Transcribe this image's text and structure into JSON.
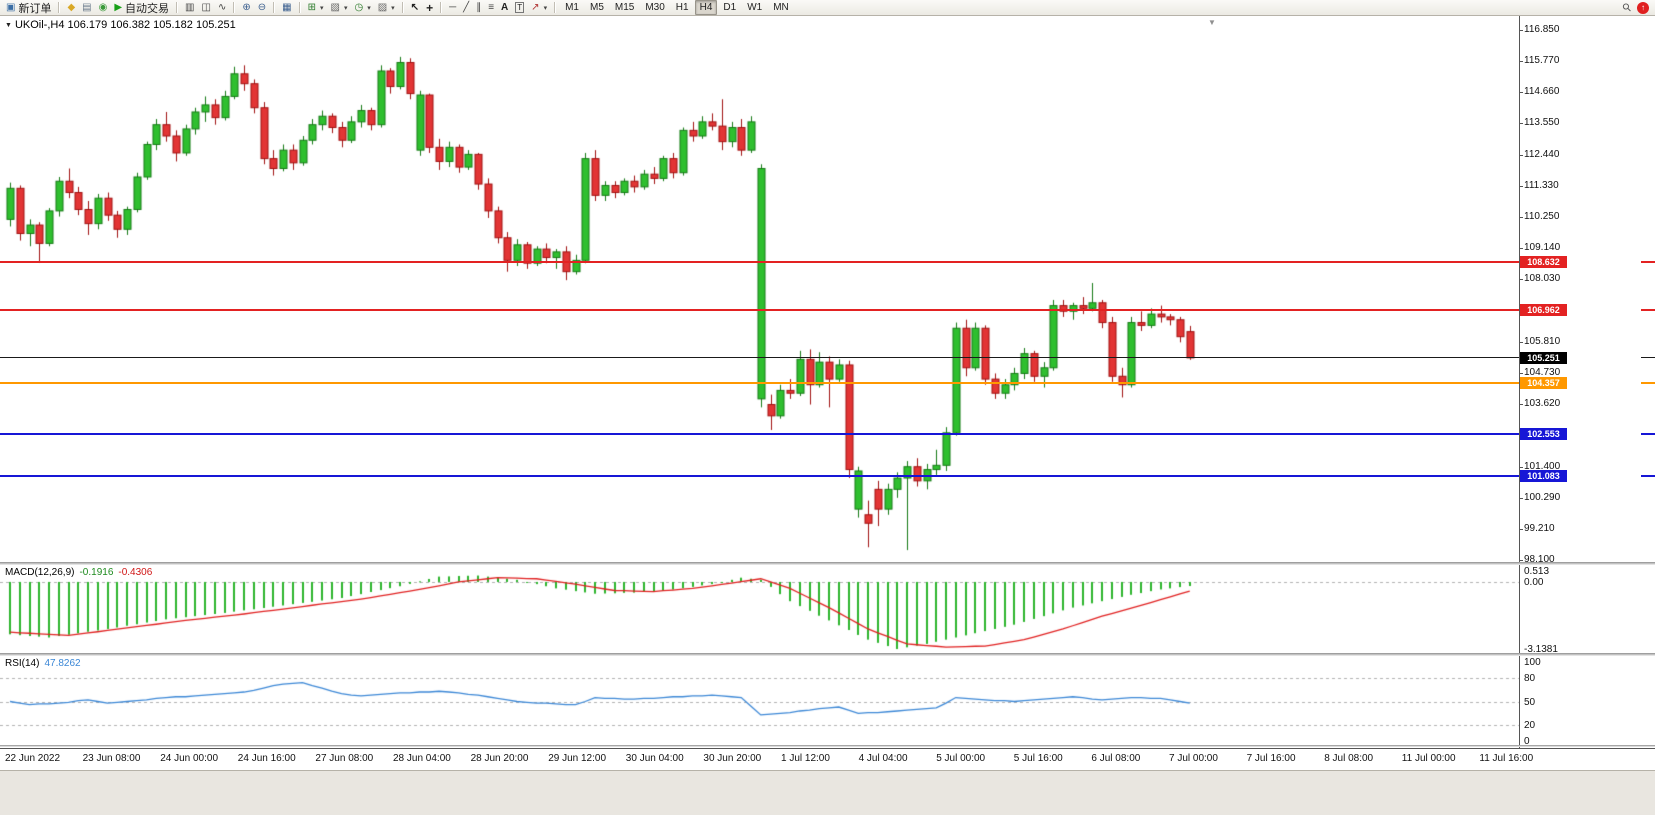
{
  "toolbar": {
    "new_order_label": "新订单",
    "auto_trading_label": "自动交易",
    "text_tool_label": "A",
    "label_tool_label": "T",
    "timeframes": [
      "M1",
      "M5",
      "M15",
      "M30",
      "H1",
      "H4",
      "D1",
      "W1",
      "MN"
    ],
    "active_timeframe": "H4"
  },
  "icons": {
    "new_order": "▣",
    "profile": "◆",
    "print": "▤",
    "web": "◉",
    "play": "▶",
    "bars": "▥",
    "candles": "◫",
    "line_chart": "∿",
    "zoom_in": "⊕",
    "zoom_out": "⊖",
    "tile": "▦",
    "new_chart": "⊞",
    "profiles": "▧",
    "clock": "◷",
    "template": "▨",
    "cursor": "↖",
    "crosshair": "+",
    "hline": "─",
    "trend": "╱",
    "channel": "∥",
    "fibo": "≡",
    "arrows": "↗",
    "caret": "▾",
    "search": "⚲",
    "upload": "↑",
    "title_arrow": "▼",
    "shift_marker": "▼"
  },
  "chart": {
    "title": "UKOil-,H4 106.179 106.382 105.182 105.251",
    "price_axis_labels": [
      "116.850",
      "115.770",
      "114.660",
      "113.550",
      "112.440",
      "111.330",
      "110.250",
      "109.140",
      "108.030",
      "106.920",
      "105.810",
      "104.730",
      "103.620",
      "102.510",
      "101.400",
      "100.290",
      "99.210",
      "98.100"
    ],
    "time_labels": [
      "22 Jun 2022",
      "23 Jun 08:00",
      "24 Jun 00:00",
      "24 Jun 16:00",
      "27 Jun 08:00",
      "28 Jun 04:00",
      "28 Jun 20:00",
      "29 Jun 12:00",
      "30 Jun 04:00",
      "30 Jun 20:00",
      "1 Jul 12:00",
      "4 Jul 04:00",
      "5 Jul 00:00",
      "5 Jul 16:00",
      "6 Jul 08:00",
      "7 Jul 00:00",
      "7 Jul 16:00",
      "8 Jul 08:00",
      "11 Jul 00:00",
      "11 Jul 16:00"
    ]
  },
  "macd": {
    "title": "MACD(12,26,9)",
    "main_value": "-0.1916",
    "signal_value": "-0.4306",
    "axis": [
      "0.513",
      "0.00",
      "-3.1381"
    ]
  },
  "rsi": {
    "title": "RSI(14)",
    "value": "47.8262",
    "axis": [
      "100",
      "80",
      "50",
      "20",
      "0"
    ]
  },
  "chart_data": {
    "type": "candlestick",
    "symbol": "UKOil-",
    "timeframe": "H4",
    "price_range": [
      98.1,
      116.85
    ],
    "levels": [
      {
        "value": 108.632,
        "label": "108.632",
        "color": "#e32222",
        "width": 2
      },
      {
        "value": 106.962,
        "label": "106.962",
        "color": "#e32222",
        "width": 2
      },
      {
        "value": 105.251,
        "label": "105.251",
        "color": "#1a1a1a",
        "width": 1,
        "badge": "#000000"
      },
      {
        "value": 104.357,
        "label": "104.357",
        "color": "#ff9800",
        "width": 2
      },
      {
        "value": 102.553,
        "label": "102.553",
        "color": "#1616d6",
        "width": 2
      },
      {
        "value": 101.083,
        "label": "101.083",
        "color": "#1616d6",
        "width": 2
      }
    ],
    "ohlc": [
      [
        110.15,
        111.45,
        109.9,
        111.25
      ],
      [
        111.25,
        111.35,
        109.4,
        109.65
      ],
      [
        109.65,
        110.15,
        109.2,
        109.95
      ],
      [
        109.95,
        110.05,
        108.63,
        109.3
      ],
      [
        109.3,
        110.55,
        109.2,
        110.45
      ],
      [
        110.45,
        111.65,
        110.25,
        111.5
      ],
      [
        111.5,
        111.95,
        110.9,
        111.1
      ],
      [
        111.1,
        111.3,
        110.3,
        110.5
      ],
      [
        110.5,
        110.8,
        109.6,
        110.0
      ],
      [
        110.0,
        111.05,
        109.8,
        110.9
      ],
      [
        110.9,
        111.1,
        110.1,
        110.3
      ],
      [
        110.3,
        110.45,
        109.5,
        109.8
      ],
      [
        109.8,
        110.6,
        109.6,
        110.5
      ],
      [
        110.5,
        111.8,
        110.4,
        111.65
      ],
      [
        111.65,
        112.9,
        111.55,
        112.8
      ],
      [
        112.8,
        113.7,
        112.6,
        113.5
      ],
      [
        113.5,
        113.95,
        112.9,
        113.1
      ],
      [
        113.1,
        113.3,
        112.2,
        112.5
      ],
      [
        112.5,
        113.5,
        112.4,
        113.35
      ],
      [
        113.35,
        114.1,
        113.15,
        113.95
      ],
      [
        113.95,
        114.5,
        113.6,
        114.2
      ],
      [
        114.2,
        114.4,
        113.5,
        113.75
      ],
      [
        113.75,
        114.7,
        113.65,
        114.5
      ],
      [
        114.5,
        115.55,
        114.4,
        115.3
      ],
      [
        115.3,
        115.6,
        114.7,
        114.95
      ],
      [
        114.95,
        115.1,
        113.9,
        114.1
      ],
      [
        114.1,
        114.3,
        112.1,
        112.3
      ],
      [
        112.3,
        112.6,
        111.7,
        111.95
      ],
      [
        111.95,
        112.8,
        111.85,
        112.6
      ],
      [
        112.6,
        112.8,
        111.9,
        112.15
      ],
      [
        112.15,
        113.1,
        112.05,
        112.95
      ],
      [
        112.95,
        113.7,
        112.8,
        113.5
      ],
      [
        113.5,
        114.0,
        113.3,
        113.8
      ],
      [
        113.8,
        113.9,
        113.2,
        113.4
      ],
      [
        113.4,
        113.6,
        112.7,
        112.95
      ],
      [
        112.95,
        113.8,
        112.85,
        113.6
      ],
      [
        113.6,
        114.2,
        113.4,
        114.0
      ],
      [
        114.0,
        114.1,
        113.3,
        113.5
      ],
      [
        113.5,
        115.6,
        113.4,
        115.4
      ],
      [
        115.4,
        115.5,
        114.6,
        114.85
      ],
      [
        114.85,
        115.9,
        114.75,
        115.7
      ],
      [
        115.7,
        115.85,
        114.4,
        114.6
      ],
      [
        112.6,
        114.7,
        112.4,
        114.55
      ],
      [
        114.55,
        114.6,
        112.5,
        112.7
      ],
      [
        112.7,
        113.0,
        111.9,
        112.2
      ],
      [
        112.2,
        112.9,
        112.0,
        112.7
      ],
      [
        112.7,
        112.8,
        111.8,
        112.0
      ],
      [
        112.0,
        112.6,
        111.9,
        112.45
      ],
      [
        112.45,
        112.5,
        111.2,
        111.4
      ],
      [
        111.4,
        111.6,
        110.2,
        110.45
      ],
      [
        110.45,
        110.6,
        109.3,
        109.5
      ],
      [
        109.5,
        109.7,
        108.3,
        108.7
      ],
      [
        108.7,
        109.45,
        108.5,
        109.25
      ],
      [
        109.25,
        109.35,
        108.4,
        108.6
      ],
      [
        108.6,
        109.2,
        108.5,
        109.1
      ],
      [
        109.1,
        109.3,
        108.6,
        108.8
      ],
      [
        108.8,
        109.1,
        108.4,
        109.0
      ],
      [
        109.0,
        109.2,
        108.0,
        108.3
      ],
      [
        108.3,
        108.9,
        108.2,
        108.7
      ],
      [
        108.7,
        112.5,
        108.6,
        112.3
      ],
      [
        112.3,
        112.6,
        110.8,
        111.0
      ],
      [
        111.0,
        111.5,
        110.8,
        111.35
      ],
      [
        111.35,
        111.5,
        110.9,
        111.1
      ],
      [
        111.1,
        111.6,
        111.0,
        111.5
      ],
      [
        111.5,
        111.7,
        111.1,
        111.3
      ],
      [
        111.3,
        111.9,
        111.2,
        111.75
      ],
      [
        111.75,
        112.0,
        111.4,
        111.6
      ],
      [
        111.6,
        112.4,
        111.5,
        112.3
      ],
      [
        112.3,
        112.5,
        111.6,
        111.8
      ],
      [
        111.8,
        113.4,
        111.7,
        113.3
      ],
      [
        113.3,
        113.6,
        112.9,
        113.1
      ],
      [
        113.1,
        113.8,
        113.0,
        113.6
      ],
      [
        113.6,
        113.9,
        113.3,
        113.45
      ],
      [
        113.45,
        114.4,
        112.6,
        112.9
      ],
      [
        112.9,
        113.6,
        112.7,
        113.4
      ],
      [
        113.4,
        113.7,
        112.4,
        112.6
      ],
      [
        112.6,
        113.8,
        112.5,
        113.6
      ],
      [
        103.8,
        112.1,
        103.5,
        111.95
      ],
      [
        103.6,
        103.95,
        102.7,
        103.2
      ],
      [
        103.2,
        104.3,
        103.1,
        104.1
      ],
      [
        104.1,
        104.5,
        103.8,
        104.0
      ],
      [
        104.0,
        105.5,
        103.9,
        105.2
      ],
      [
        105.2,
        105.55,
        103.6,
        104.3
      ],
      [
        104.3,
        105.45,
        104.2,
        105.1
      ],
      [
        105.1,
        105.3,
        103.5,
        104.5
      ],
      [
        104.5,
        105.2,
        104.4,
        105.0
      ],
      [
        105.0,
        105.15,
        101.0,
        101.3
      ],
      [
        99.9,
        101.4,
        99.6,
        101.25
      ],
      [
        99.7,
        100.2,
        98.55,
        99.4
      ],
      [
        100.6,
        100.9,
        99.3,
        99.9
      ],
      [
        99.9,
        100.8,
        99.7,
        100.6
      ],
      [
        100.6,
        101.2,
        100.3,
        101.0
      ],
      [
        101.0,
        101.6,
        98.45,
        101.4
      ],
      [
        101.4,
        101.7,
        100.7,
        100.9
      ],
      [
        100.9,
        101.5,
        100.6,
        101.3
      ],
      [
        101.3,
        102.0,
        101.1,
        101.45
      ],
      [
        101.45,
        102.8,
        101.25,
        102.6
      ],
      [
        102.6,
        106.5,
        102.5,
        106.3
      ],
      [
        106.3,
        106.6,
        104.6,
        104.9
      ],
      [
        104.9,
        106.5,
        104.8,
        106.3
      ],
      [
        106.3,
        106.4,
        104.3,
        104.5
      ],
      [
        104.5,
        104.7,
        103.8,
        104.0
      ],
      [
        104.0,
        104.5,
        103.8,
        104.3
      ],
      [
        104.3,
        104.9,
        104.1,
        104.7
      ],
      [
        104.7,
        105.6,
        104.5,
        105.4
      ],
      [
        105.4,
        105.5,
        104.4,
        104.6
      ],
      [
        104.6,
        105.1,
        104.2,
        104.9
      ],
      [
        104.9,
        107.3,
        104.8,
        107.1
      ],
      [
        107.1,
        107.3,
        106.7,
        106.9
      ],
      [
        106.9,
        107.2,
        106.6,
        107.1
      ],
      [
        107.1,
        107.4,
        106.8,
        107.0
      ],
      [
        107.0,
        107.9,
        106.9,
        107.2
      ],
      [
        107.2,
        107.3,
        106.3,
        106.5
      ],
      [
        106.5,
        106.7,
        104.4,
        104.6
      ],
      [
        104.6,
        104.9,
        103.85,
        104.3
      ],
      [
        104.3,
        106.7,
        104.2,
        106.5
      ],
      [
        106.5,
        106.9,
        106.2,
        106.4
      ],
      [
        106.4,
        107.0,
        106.3,
        106.8
      ],
      [
        106.8,
        107.1,
        106.5,
        106.7
      ],
      [
        106.7,
        106.8,
        106.4,
        106.6
      ],
      [
        106.6,
        106.7,
        105.8,
        106.0
      ],
      [
        106.179,
        106.382,
        105.182,
        105.251
      ]
    ],
    "macd": {
      "range": [
        -3.1381,
        0.513
      ],
      "histogram": [
        -2.45,
        -2.49,
        -2.53,
        -2.56,
        -2.6,
        -2.53,
        -2.47,
        -2.4,
        -2.33,
        -2.27,
        -2.2,
        -2.13,
        -2.05,
        -1.98,
        -1.9,
        -1.83,
        -1.75,
        -1.7,
        -1.65,
        -1.6,
        -1.55,
        -1.5,
        -1.45,
        -1.39,
        -1.33,
        -1.28,
        -1.22,
        -1.16,
        -1.1,
        -1.04,
        -0.98,
        -0.93,
        -0.87,
        -0.81,
        -0.75,
        -0.66,
        -0.57,
        -0.47,
        -0.38,
        -0.29,
        -0.2,
        -0.09,
        0.03,
        0.14,
        0.25,
        0.26,
        0.28,
        0.29,
        0.3,
        0.25,
        0.2,
        0.15,
        0.1,
        0.0,
        -0.1,
        -0.2,
        -0.3,
        -0.36,
        -0.43,
        -0.49,
        -0.55,
        -0.54,
        -0.53,
        -0.51,
        -0.5,
        -0.46,
        -0.43,
        -0.39,
        -0.35,
        -0.29,
        -0.23,
        -0.16,
        -0.1,
        0.0,
        0.1,
        0.2,
        0.15,
        0.1,
        -0.23,
        -0.57,
        -0.9,
        -1.13,
        -1.35,
        -1.58,
        -1.8,
        -2.03,
        -2.25,
        -2.48,
        -2.7,
        -2.85,
        -3.0,
        -3.14,
        -3.06,
        -2.98,
        -2.9,
        -2.8,
        -2.7,
        -2.6,
        -2.5,
        -2.4,
        -2.3,
        -2.2,
        -2.1,
        -2.0,
        -1.87,
        -1.73,
        -1.6,
        -1.47,
        -1.33,
        -1.2,
        -1.1,
        -1.0,
        -0.9,
        -0.8,
        -0.7,
        -0.6,
        -0.52,
        -0.43,
        -0.35,
        -0.3,
        -0.24,
        -0.19
      ],
      "signal": [
        -2.35,
        -2.38,
        -2.4,
        -2.43,
        -2.45,
        -2.48,
        -2.5,
        -2.44,
        -2.38,
        -2.33,
        -2.27,
        -2.21,
        -2.15,
        -2.09,
        -2.03,
        -1.98,
        -1.92,
        -1.86,
        -1.8,
        -1.75,
        -1.7,
        -1.65,
        -1.6,
        -1.55,
        -1.5,
        -1.44,
        -1.38,
        -1.33,
        -1.27,
        -1.21,
        -1.15,
        -1.09,
        -1.03,
        -0.98,
        -0.92,
        -0.86,
        -0.8,
        -0.73,
        -0.65,
        -0.58,
        -0.5,
        -0.43,
        -0.35,
        -0.26,
        -0.18,
        -0.09,
        0.0,
        0.05,
        0.1,
        0.15,
        0.2,
        0.19,
        0.18,
        0.16,
        0.15,
        0.09,
        0.03,
        -0.04,
        -0.1,
        -0.18,
        -0.25,
        -0.33,
        -0.4,
        -0.41,
        -0.43,
        -0.44,
        -0.45,
        -0.41,
        -0.38,
        -0.34,
        -0.3,
        -0.24,
        -0.18,
        -0.11,
        -0.05,
        0.02,
        0.08,
        0.15,
        0.0,
        -0.15,
        -0.3,
        -0.53,
        -0.75,
        -0.98,
        -1.2,
        -1.45,
        -1.7,
        -1.95,
        -2.2,
        -2.38,
        -2.55,
        -2.73,
        -2.9,
        -2.94,
        -2.98,
        -3.01,
        -3.05,
        -3.04,
        -3.03,
        -3.01,
        -3.0,
        -2.93,
        -2.85,
        -2.78,
        -2.7,
        -2.58,
        -2.45,
        -2.33,
        -2.2,
        -2.05,
        -1.9,
        -1.75,
        -1.6,
        -1.48,
        -1.35,
        -1.23,
        -1.1,
        -0.97,
        -0.83,
        -0.7,
        -0.56,
        -0.43
      ]
    },
    "rsi": {
      "range": [
        0,
        100
      ],
      "levels": [
        80,
        50,
        20
      ],
      "values": [
        50,
        48,
        46,
        47,
        47,
        48,
        49,
        51,
        52,
        50,
        48,
        49,
        50,
        51,
        52,
        54,
        55,
        56,
        56,
        57,
        58,
        59,
        60,
        61,
        62,
        64,
        67,
        70,
        72,
        73,
        74,
        70,
        67,
        63,
        60,
        58,
        57,
        58,
        59,
        60,
        61,
        61,
        62,
        62,
        63,
        62,
        61,
        59,
        58,
        56,
        54,
        52,
        50,
        49,
        48,
        48,
        47,
        46,
        46,
        50,
        55,
        54,
        54,
        53,
        53,
        54,
        54,
        55,
        56,
        56,
        57,
        57,
        58,
        57,
        56,
        55,
        44,
        33,
        34,
        35,
        36,
        38,
        39,
        41,
        42,
        43,
        39,
        35,
        36,
        36,
        37,
        38,
        39,
        40,
        41,
        42,
        48,
        55,
        54,
        53,
        52,
        51,
        51,
        50,
        51,
        52,
        53,
        54,
        55,
        56,
        55,
        53,
        52,
        53,
        54,
        55,
        55,
        54,
        54,
        52,
        50,
        48
      ]
    }
  }
}
